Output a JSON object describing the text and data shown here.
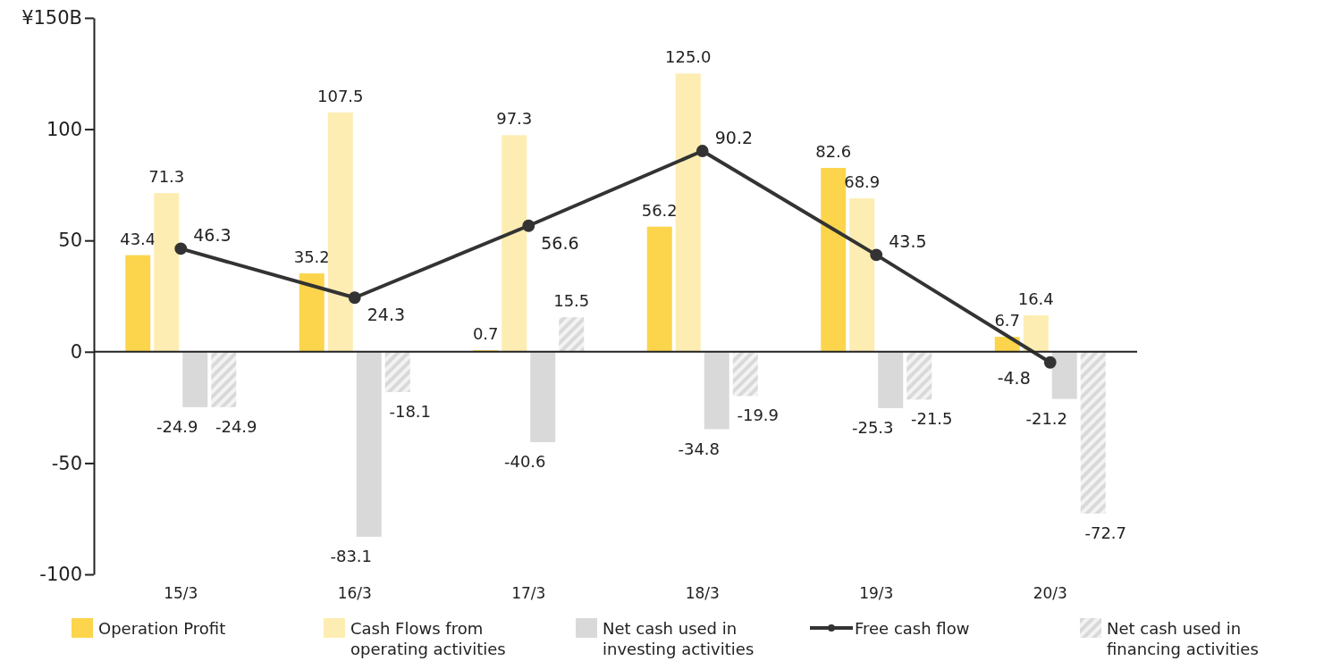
{
  "chart_data": {
    "type": "bar",
    "categories": [
      "15/3",
      "16/3",
      "17/3",
      "18/3",
      "19/3",
      "20/3"
    ],
    "ylim": [
      -100,
      150
    ],
    "yticks": [
      {
        "value": 150,
        "label": "¥150B"
      },
      100,
      50,
      0,
      -50,
      -100
    ],
    "legend": "bottom",
    "data_labels": true,
    "marker": "circle",
    "series": [
      {
        "name": "Operation Profit",
        "color": "#fcd54c",
        "values": [
          43.4,
          35.2,
          0.7,
          56.2,
          82.6,
          6.7
        ],
        "value_labels": [
          "43.4",
          "35.2",
          "0.7",
          "56.2",
          "82.6",
          "6.7"
        ]
      },
      {
        "name": "Cash Flows from operating activities",
        "color": "#fdedb3",
        "values": [
          71.3,
          107.5,
          97.3,
          125.0,
          68.9,
          16.4
        ],
        "value_labels": [
          "71.3",
          "107.5",
          "97.3",
          "125.0",
          "68.9",
          "16.4"
        ]
      },
      {
        "name": "Net cash used in investing activities",
        "color": "#d9d9d9",
        "values": [
          -24.9,
          -83.1,
          -40.6,
          -34.8,
          -25.3,
          -21.2
        ],
        "value_labels": [
          "-24.9",
          "-83.1",
          "-40.6",
          "-34.8",
          "-25.3",
          "-21.2"
        ]
      },
      {
        "name": "Free cash flow",
        "type": "line",
        "color": "#333333",
        "values": [
          46.3,
          24.3,
          56.6,
          90.2,
          43.5,
          -4.8
        ],
        "value_labels": [
          "46.3",
          "24.3",
          "56.6",
          "90.2",
          "43.5",
          "-4.8"
        ]
      },
      {
        "name": "Net cash used in financing activities",
        "color": "#d9d9d9",
        "values": [
          -24.9,
          -18.1,
          15.5,
          -19.9,
          -21.5,
          -72.7
        ],
        "value_labels": [
          "-24.9",
          "-18.1",
          "15.5",
          "-19.9",
          "-21.5",
          "-72.7"
        ]
      }
    ]
  }
}
